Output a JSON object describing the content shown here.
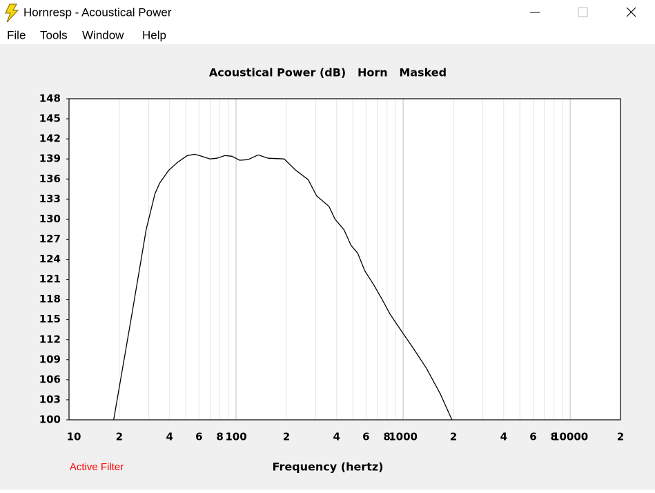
{
  "window": {
    "title": "Hornresp - Acoustical Power",
    "menu": [
      "File",
      "Tools",
      "Window",
      "Help"
    ]
  },
  "chart_data": {
    "type": "line",
    "title": "Acoustical Power (dB)   Horn   Masked",
    "xlabel": "Frequency (hertz)",
    "annotation": "Active Filter",
    "xscale": "log",
    "xlim": [
      10,
      20000
    ],
    "ylim": [
      100,
      148
    ],
    "xticks": [
      {
        "value": 10,
        "label": "10"
      },
      {
        "value": 20,
        "label": "2"
      },
      {
        "value": 40,
        "label": "4"
      },
      {
        "value": 60,
        "label": "6"
      },
      {
        "value": 80,
        "label": "8"
      },
      100,
      {
        "value": 200,
        "label": "2"
      },
      {
        "value": 400,
        "label": "4"
      },
      {
        "value": 600,
        "label": "6"
      },
      {
        "value": 800,
        "label": "8"
      },
      1000,
      {
        "value": 2000,
        "label": "2"
      },
      {
        "value": 4000,
        "label": "4"
      },
      {
        "value": 6000,
        "label": "6"
      },
      {
        "value": 8000,
        "label": "8"
      },
      10000,
      {
        "value": 20000,
        "label": "2"
      }
    ],
    "xgrid_minor": [
      30,
      50,
      70,
      90,
      300,
      500,
      700,
      900,
      3000,
      5000,
      7000,
      9000
    ],
    "yticks": [
      100,
      103,
      106,
      109,
      112,
      115,
      118,
      121,
      124,
      127,
      130,
      133,
      136,
      139,
      142,
      145,
      148
    ],
    "grid": true,
    "series": [
      {
        "name": "Acoustical Power",
        "color": "#000000",
        "x": [
          18.5,
          23.5,
          29,
          32.7,
          34.9,
          39.5,
          44.7,
          51,
          56.6,
          62.2,
          69.8,
          76.7,
          85.9,
          94.4,
          105,
          117.6,
          135.5,
          156,
          194,
          228,
          270,
          303,
          360,
          391,
          443,
          487,
          535,
          589,
          666,
          745,
          835,
          981,
          1143,
          1380,
          1667,
          1960
        ],
        "values": [
          100,
          115,
          128.5,
          133.8,
          135.4,
          137.3,
          138.5,
          139.5,
          139.7,
          139.4,
          139.0,
          139.1,
          139.5,
          139.4,
          138.8,
          138.9,
          139.6,
          139.1,
          139.0,
          137.3,
          135.9,
          133.5,
          131.9,
          130,
          128.4,
          126.1,
          124.9,
          122.3,
          120.2,
          118.1,
          115.8,
          113.2,
          110.8,
          107.7,
          103.9,
          100
        ]
      }
    ]
  }
}
